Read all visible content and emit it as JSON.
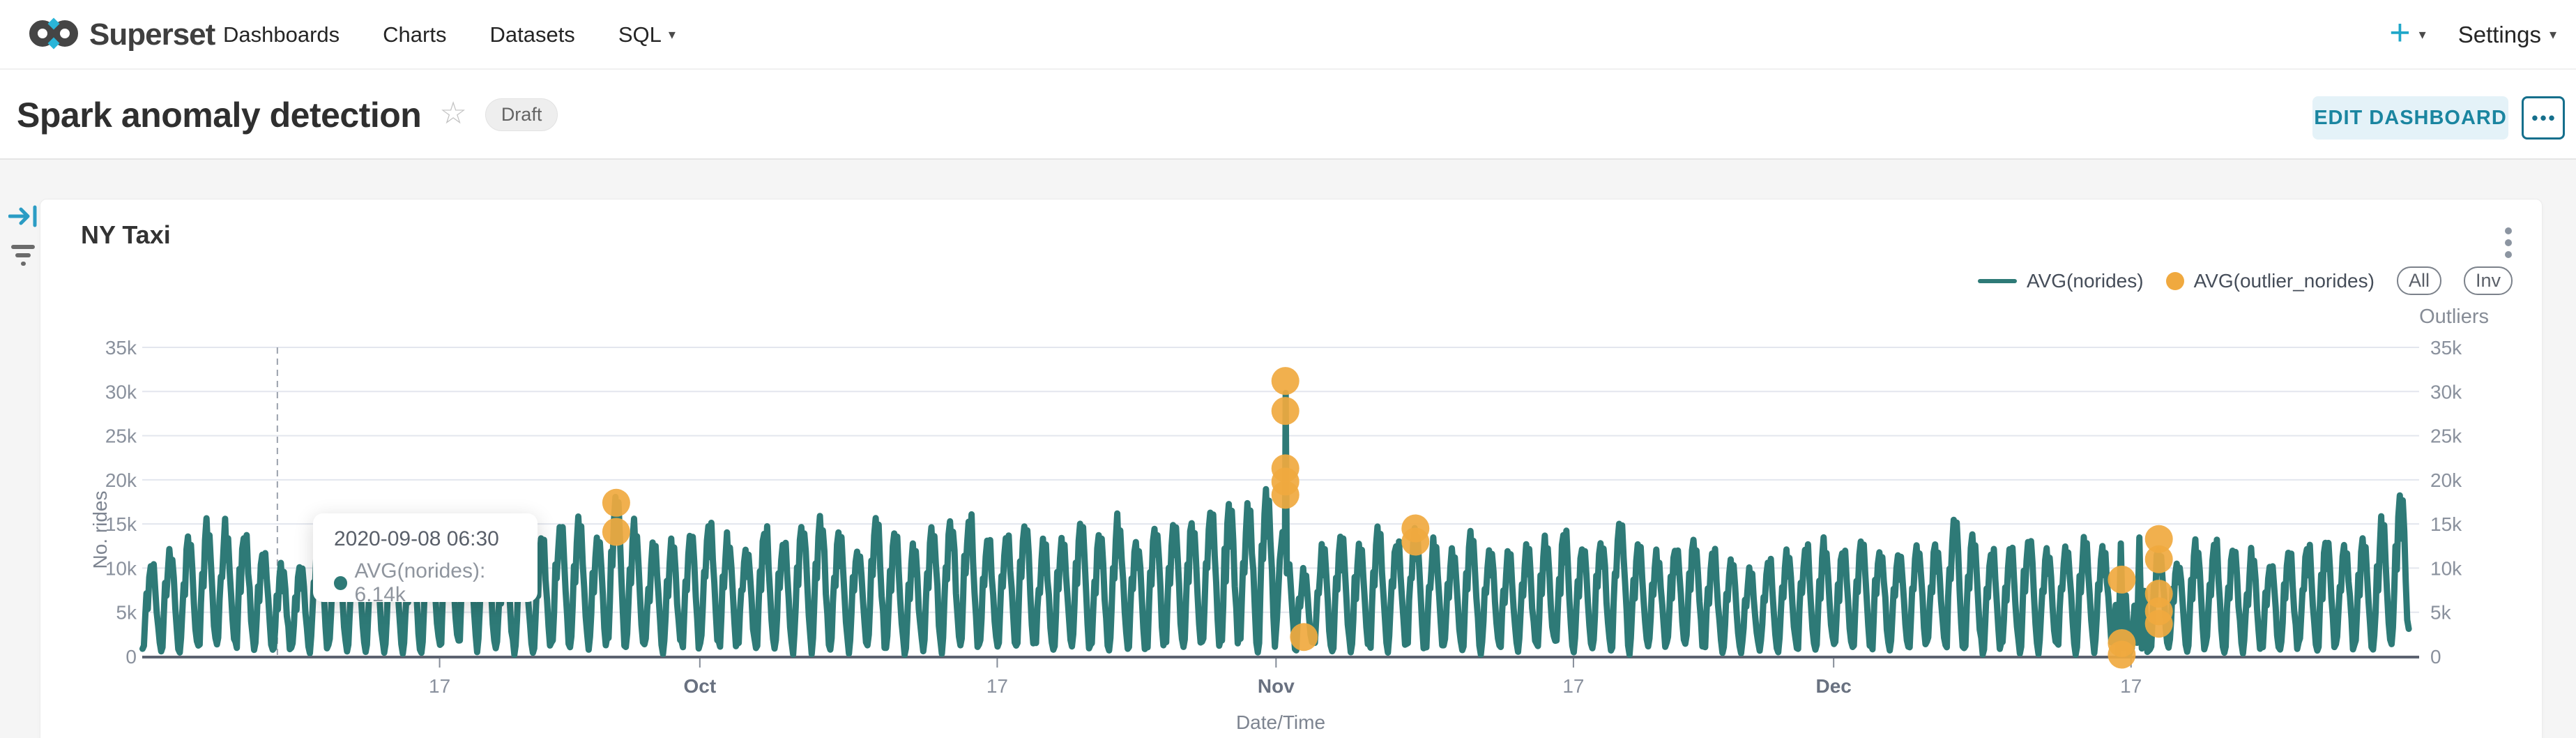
{
  "nav": {
    "brand": "Superset",
    "items": [
      {
        "label": "Dashboards"
      },
      {
        "label": "Charts"
      },
      {
        "label": "Datasets"
      },
      {
        "label": "SQL"
      }
    ],
    "plus_label": "+",
    "settings_label": "Settings"
  },
  "header": {
    "title": "Spark anomaly detection",
    "status": "Draft",
    "edit_button": "EDIT DASHBOARD",
    "more_button": "•••"
  },
  "chart_data": {
    "type": "line",
    "title": "NY Taxi",
    "x_axis": {
      "label": "Date/Time",
      "start": "2020-09-01",
      "end": "2020-12-31",
      "ticks": [
        {
          "label": "17",
          "day": 16,
          "month": false
        },
        {
          "label": "Oct",
          "day": 30,
          "month": true
        },
        {
          "label": "17",
          "day": 46,
          "month": false
        },
        {
          "label": "Nov",
          "day": 61,
          "month": true
        },
        {
          "label": "17",
          "day": 77,
          "month": false
        },
        {
          "label": "Dec",
          "day": 91,
          "month": true
        },
        {
          "label": "17",
          "day": 107,
          "month": false
        }
      ]
    },
    "y_axis_left": {
      "label": "No. rides",
      "min": 0,
      "max": 35000,
      "tick_step": 5000,
      "tick_labels": [
        "0",
        "5k",
        "10k",
        "15k",
        "20k",
        "25k",
        "30k",
        "35k"
      ]
    },
    "y_axis_right": {
      "label": "Outliers",
      "tick_labels": [
        "0",
        "5k",
        "10k",
        "15k",
        "20k",
        "25k",
        "30k",
        "35k"
      ]
    },
    "legend_buttons": [
      "All",
      "Inv"
    ],
    "grid": true,
    "series": [
      {
        "name": "AVG(norides)",
        "kind": "line",
        "color": "#2e7a77",
        "daily_peaks_k": [
          10.5,
          12.2,
          13.6,
          15.0,
          14.8,
          13.9,
          11.8,
          10.1,
          10.3,
          14.0,
          13.8,
          12.4,
          13.2,
          12.0,
          11.4,
          13.6,
          14.2,
          15.6,
          14.4,
          12.2,
          11.8,
          13.1,
          14.6,
          15.0,
          13.4,
          17.6,
          15.2,
          12.6,
          13.0,
          14.1,
          15.4,
          13.6,
          12.4,
          14.6,
          13.1,
          15.5,
          16.0,
          14.1,
          12.6,
          15.1,
          14.0,
          12.1,
          14.4,
          15.5,
          16.1,
          13.6,
          14.0,
          15.0,
          12.6,
          13.4,
          15.1,
          14.1,
          15.6,
          13.1,
          14.4,
          15.1,
          15.6,
          16.4,
          17.1,
          17.6,
          18.1,
          31.2,
          9.6,
          12.1,
          13.4,
          12.6,
          14.1,
          13.1,
          14.6,
          13.1,
          12.1,
          13.6,
          12.4,
          11.6,
          12.1,
          13.1,
          14.1,
          12.6,
          13.4,
          15.5,
          13.1,
          11.6,
          12.6,
          13.4,
          12.1,
          10.6,
          9.6,
          11.1,
          12.1,
          12.6,
          13.1,
          12.1,
          13.6,
          12.4,
          11.6,
          12.6,
          13.1,
          15.5,
          13.6,
          12.1,
          12.6,
          13.6,
          12.1,
          12.6,
          13.1,
          12.4,
          13.8,
          14.1,
          12.6,
          11.1,
          12.6,
          13.1,
          12.4,
          11.6,
          10.6,
          11.6,
          12.6,
          13.1,
          12.6,
          13.6,
          15.1,
          18.3
        ]
      },
      {
        "name": "AVG(outlier_norides)",
        "kind": "scatter",
        "color": "#f0a93f",
        "points": [
          {
            "date": "2020-09-26",
            "value": 17400
          },
          {
            "date": "2020-09-26",
            "value": 14100
          },
          {
            "date": "2020-11-01",
            "value": 31200
          },
          {
            "date": "2020-11-01",
            "value": 27800
          },
          {
            "date": "2020-11-01",
            "value": 21300
          },
          {
            "date": "2020-11-01",
            "value": 19800
          },
          {
            "date": "2020-11-01",
            "value": 18300
          },
          {
            "date": "2020-11-02",
            "value": 2200
          },
          {
            "date": "2020-11-08",
            "value": 14500
          },
          {
            "date": "2020-11-08",
            "value": 13000
          },
          {
            "date": "2020-12-16",
            "value": 8700
          },
          {
            "date": "2020-12-16",
            "value": 1500
          },
          {
            "date": "2020-12-16",
            "value": 200
          },
          {
            "date": "2020-12-18",
            "value": 13300
          },
          {
            "date": "2020-12-18",
            "value": 11000
          },
          {
            "date": "2020-12-18",
            "value": 7100
          },
          {
            "date": "2020-12-18",
            "value": 5100
          },
          {
            "date": "2020-12-18",
            "value": 3700
          }
        ]
      }
    ],
    "tooltip": {
      "datetime": "2020-09-08 06:30",
      "series": "AVG(norides)",
      "value": "6.14k"
    }
  }
}
